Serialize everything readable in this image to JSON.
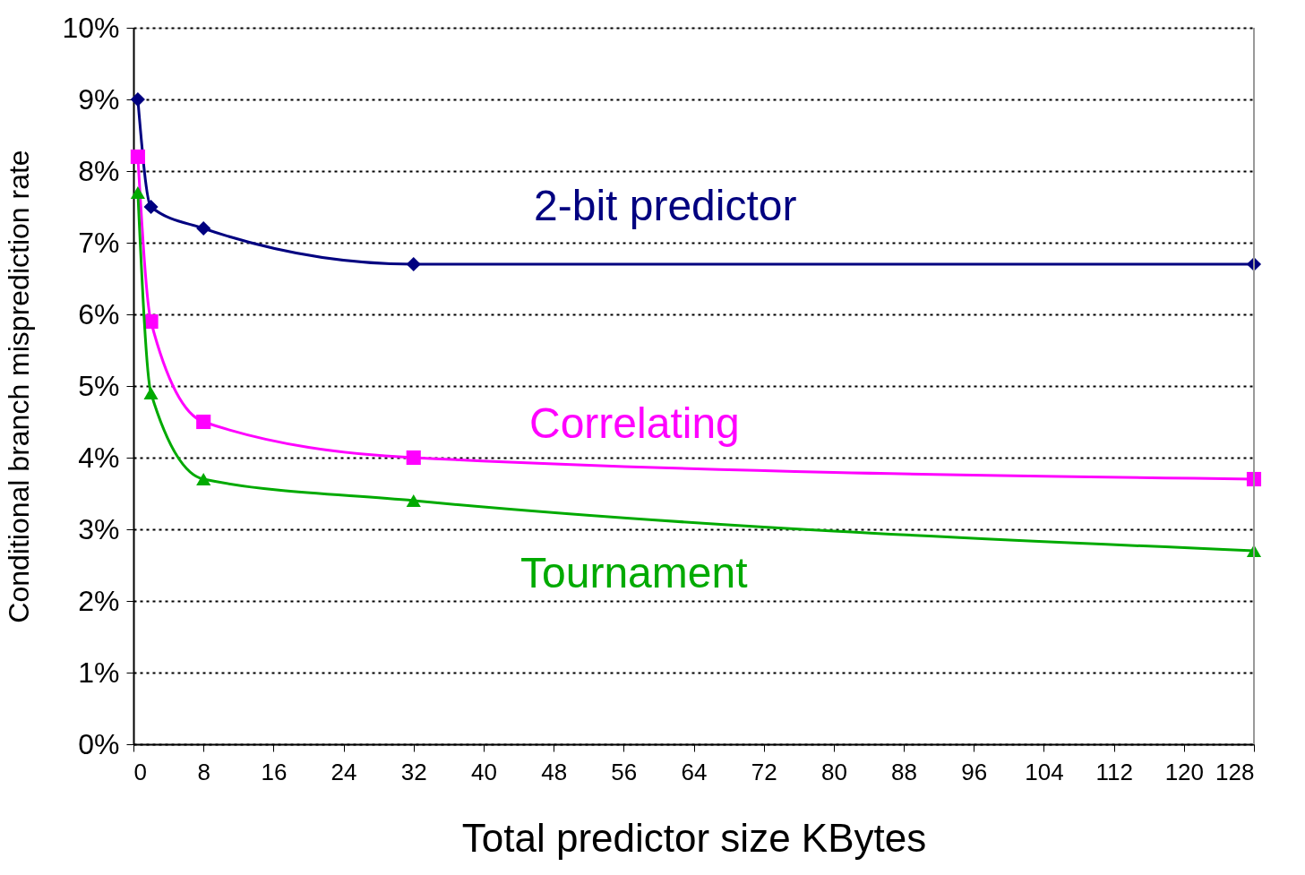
{
  "chart_data": {
    "type": "line",
    "xlabel": "Total predictor size KBytes",
    "ylabel": "Conditional branch misprediction rate",
    "xlim": [
      0,
      128
    ],
    "xticks": [
      0,
      8,
      16,
      24,
      32,
      40,
      48,
      56,
      64,
      72,
      80,
      88,
      96,
      104,
      112,
      120,
      128
    ],
    "ylim": [
      0,
      10
    ],
    "yticks": [
      {
        "value": 0,
        "label": "0%"
      },
      {
        "value": 1,
        "label": "1%"
      },
      {
        "value": 2,
        "label": "2%"
      },
      {
        "value": 3,
        "label": "3%"
      },
      {
        "value": 4,
        "label": "4%"
      },
      {
        "value": 5,
        "label": "5%"
      },
      {
        "value": 6,
        "label": "6%"
      },
      {
        "value": 7,
        "label": "7%"
      },
      {
        "value": 8,
        "label": "8%"
      },
      {
        "value": 9,
        "label": "9%"
      },
      {
        "value": 10,
        "label": "10%"
      }
    ],
    "grid": "y",
    "legend": false,
    "series": [
      {
        "name": "2-bit predictor",
        "color": "#000080",
        "marker": "diamond",
        "x": [
          0.5,
          2,
          8,
          32,
          128
        ],
        "values": [
          9.0,
          7.5,
          7.2,
          6.7,
          6.7
        ]
      },
      {
        "name": "Correlating",
        "color": "#ff00ff",
        "marker": "square",
        "x": [
          0.5,
          2,
          8,
          32,
          128
        ],
        "values": [
          8.2,
          5.9,
          4.5,
          4.0,
          3.7
        ]
      },
      {
        "name": "Tournament",
        "color": "#00aa00",
        "marker": "triangle",
        "x": [
          0.5,
          2,
          8,
          32,
          128
        ],
        "values": [
          7.7,
          4.9,
          3.7,
          3.4,
          2.7
        ]
      }
    ]
  }
}
